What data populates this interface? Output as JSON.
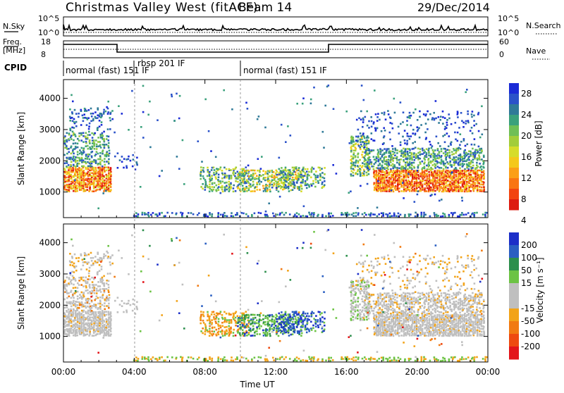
{
  "header": {
    "title": "Christmas Valley West (fitACF)",
    "beam": "Beam 14",
    "date": "29/Dec/2014"
  },
  "top_panel": {
    "nsky_label": "N.Sky",
    "nsearch_label": "N.Search",
    "left_ticks": [
      "10^5",
      "10^0"
    ],
    "right_ticks": [
      "10^5",
      "10^0"
    ],
    "freq_label": [
      "Freq.",
      "[MHz]"
    ],
    "freq_ticks": [
      "18",
      "8"
    ],
    "nave_label": "Nave",
    "nave_ticks": [
      "60",
      "0"
    ],
    "cpid_label": "CPID",
    "cpid_segments": [
      {
        "label": "normal (fast) 151 IF",
        "start_hour": 0
      },
      {
        "label": "rbsp 201 IF",
        "start_hour": 4
      },
      {
        "label": "normal (fast) 151 IF",
        "start_hour": 10
      }
    ]
  },
  "x_axis": {
    "title": "Time UT",
    "ticks": [
      "00:00",
      "04:00",
      "08:00",
      "12:00",
      "16:00",
      "20:00",
      "00:00"
    ]
  },
  "chart_data": [
    {
      "type": "heatmap",
      "title": "",
      "xlabel": "Time UT",
      "ylabel": "Slant Range [km]",
      "xlim_hours": [
        0,
        24
      ],
      "ylim": [
        180,
        4600
      ],
      "yticks": [
        "1000",
        "2000",
        "3000",
        "4000"
      ],
      "colorbar": {
        "label": "Power [dB]",
        "tick_labels": [
          "4",
          "8",
          "12",
          "16",
          "20",
          "24",
          "28"
        ],
        "colors": [
          "#1a2bd6",
          "#2a52c9",
          "#2f7a98",
          "#3aa17c",
          "#6fbf56",
          "#a2cd3a",
          "#d6dc2a",
          "#f4c81a",
          "#fb9f17",
          "#f97512",
          "#f24410",
          "#dd1b10"
        ]
      }
    },
    {
      "type": "heatmap",
      "title": "",
      "xlabel": "Time UT",
      "ylabel": "Slant Range [km]",
      "xlim_hours": [
        0,
        24
      ],
      "ylim": [
        180,
        4600
      ],
      "yticks": [
        "1000",
        "2000",
        "3000",
        "4000"
      ],
      "colorbar": {
        "label": "Velocity [m s⁻¹]",
        "tick_labels": [
          "200",
          "100",
          "50",
          "15",
          "-15",
          "-50",
          "-100",
          "-200"
        ],
        "colors": [
          "#1c2fc8",
          "#2a5fc2",
          "#2c8f4c",
          "#6cc344",
          "#bfbfbf",
          "#bfbfbf",
          "#f2a318",
          "#f17a12",
          "#ee4a10",
          "#e3151a"
        ]
      }
    }
  ]
}
